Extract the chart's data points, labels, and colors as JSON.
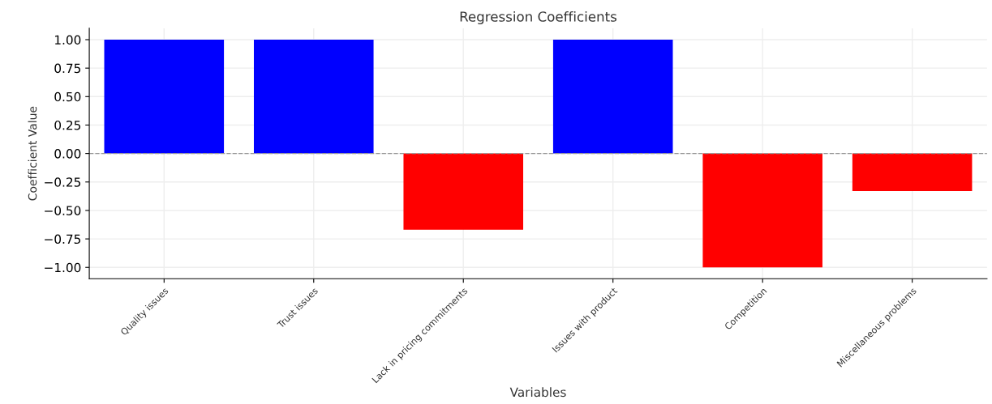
{
  "chart_data": {
    "type": "bar",
    "title": "Regression Coefficients",
    "xlabel": "Variables",
    "ylabel": "Coefficient Value",
    "categories": [
      "Quality issues",
      "Trust issues",
      "Lack in pricing commitments",
      "Issues with product",
      "Competition",
      "Miscellaneous problems"
    ],
    "values": [
      1.0,
      1.0,
      -0.67,
      1.0,
      -1.0,
      -0.33
    ],
    "colors": [
      "#0000ff",
      "#0000ff",
      "#ff0000",
      "#0000ff",
      "#ff0000",
      "#ff0000"
    ],
    "ylim": [
      -1.1,
      1.1
    ],
    "yticks": [
      {
        "value": 1.0,
        "label": "1.00"
      },
      {
        "value": 0.75,
        "label": "0.75"
      },
      {
        "value": 0.5,
        "label": "0.50"
      },
      {
        "value": 0.25,
        "label": "0.25"
      },
      {
        "value": 0.0,
        "label": "0.00"
      },
      {
        "value": -0.25,
        "label": "−0.25"
      },
      {
        "value": -0.5,
        "label": "−0.50"
      },
      {
        "value": -0.75,
        "label": "−0.75"
      },
      {
        "value": -1.0,
        "label": "−1.00"
      }
    ],
    "ref_lines": [
      {
        "axis": "y",
        "value": 0,
        "color": "#999999",
        "line_style": "dashed"
      }
    ],
    "grid": true
  }
}
